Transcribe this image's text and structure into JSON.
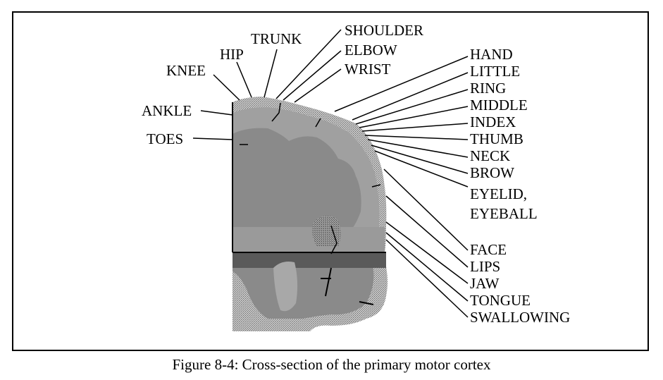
{
  "colors": {
    "cortex_outer": "#9c9c9c",
    "cortex_rim": "#b4b4b4",
    "white_matter": "#888888",
    "dark_band": "#5a5a5a",
    "lower_section": "#7a7a7a"
  },
  "labels": {
    "shoulder": "SHOULDER",
    "elbow": "ELBOW",
    "wrist": "WRIST",
    "trunk": "TRUNK",
    "hip": "HIP",
    "knee": "KNEE",
    "ankle": "ANKLE",
    "toes": "TOES",
    "hand": "HAND",
    "little": "LITTLE",
    "ring": "RING",
    "middle": "MIDDLE",
    "index": "INDEX",
    "thumb": "THUMB",
    "neck": "NECK",
    "brow": "BROW",
    "eyelid": "EYELID,",
    "eyeball": "EYEBALL",
    "face": "FACE",
    "lips": "LIPS",
    "jaw": "JAW",
    "tongue": "TONGUE",
    "swallowing": "SWALLOWING"
  },
  "caption": "Figure 8-4: Cross-section of the primary motor cortex"
}
